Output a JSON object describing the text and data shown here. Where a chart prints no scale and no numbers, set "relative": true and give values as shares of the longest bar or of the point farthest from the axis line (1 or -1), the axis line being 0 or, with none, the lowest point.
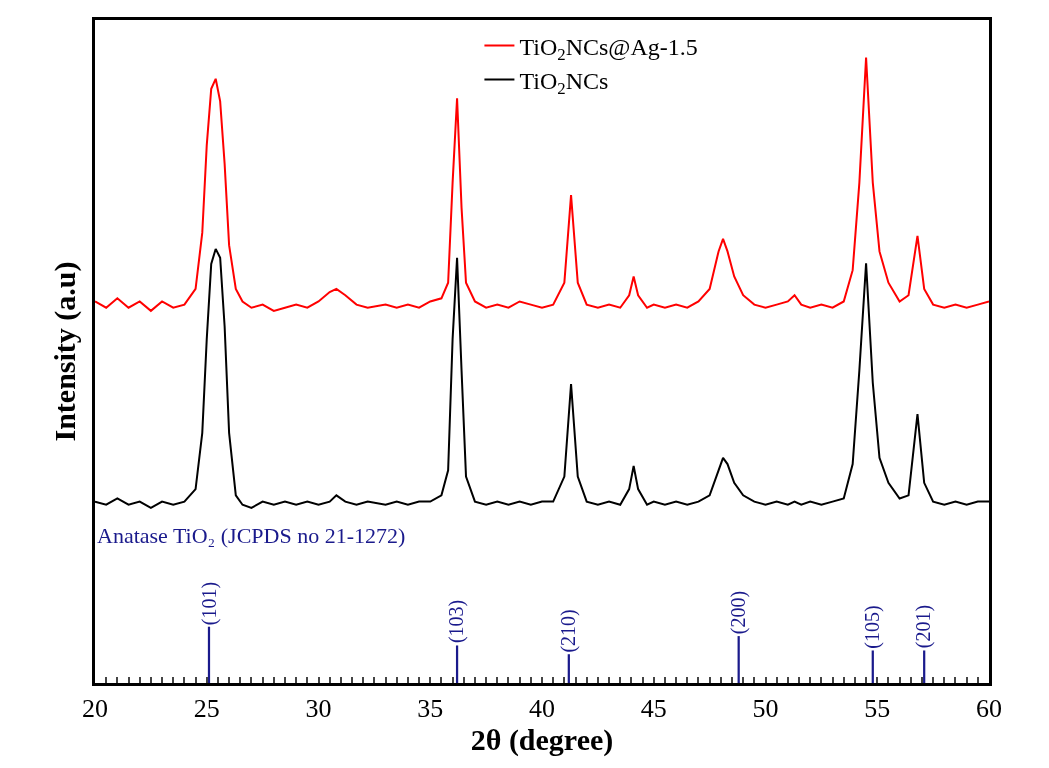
{
  "chart_data": {
    "type": "line",
    "relative": true,
    "xlabel": "2θ (degree)",
    "ylabel": "Intensity (a.u)",
    "annotations": [
      "Anatase TiO₂ (JCPDS no 21-1272)",
      {
        "text": "(101)",
        "x": 25.1,
        "y": 0.09
      },
      {
        "text": "(103)",
        "x": 36.2,
        "y": 0.06
      },
      {
        "text": "(210)",
        "x": 41.2,
        "y": 0.046
      },
      {
        "text": "(200)",
        "x": 48.8,
        "y": 0.075
      },
      {
        "text": "(105)",
        "x": 54.8,
        "y": 0.052
      },
      {
        "text": "(201)",
        "x": 57.1,
        "y": 0.052
      }
    ],
    "legend": "top",
    "marker": "none",
    "line_style": "solid",
    "tick_labels": "x",
    "xlim": [
      20,
      60
    ],
    "xticks": [
      20,
      {
        "value": 20.5,
        "label": null
      },
      {
        "value": 21,
        "label": null
      },
      {
        "value": 21.5,
        "label": null
      },
      {
        "value": 22,
        "label": null
      },
      {
        "value": 22.5,
        "label": null
      },
      {
        "value": 23,
        "label": null
      },
      {
        "value": 23.5,
        "label": null
      },
      {
        "value": 24,
        "label": null
      },
      {
        "value": 24.5,
        "label": null
      },
      25,
      {
        "value": 25.5,
        "label": null
      },
      {
        "value": 26,
        "label": null
      },
      {
        "value": 26.5,
        "label": null
      },
      {
        "value": 27,
        "label": null
      },
      {
        "value": 27.5,
        "label": null
      },
      {
        "value": 28,
        "label": null
      },
      {
        "value": 28.5,
        "label": null
      },
      {
        "value": 29,
        "label": null
      },
      {
        "value": 29.5,
        "label": null
      },
      30,
      {
        "value": 30.5,
        "label": null
      },
      {
        "value": 31,
        "label": null
      },
      {
        "value": 31.5,
        "label": null
      },
      {
        "value": 32,
        "label": null
      },
      {
        "value": 32.5,
        "label": null
      },
      {
        "value": 33,
        "label": null
      },
      {
        "value": 33.5,
        "label": null
      },
      {
        "value": 34,
        "label": null
      },
      {
        "value": 34.5,
        "label": null
      },
      35,
      {
        "value": 35.5,
        "label": null
      },
      {
        "value": 36,
        "label": null
      },
      {
        "value": 36.5,
        "label": null
      },
      {
        "value": 37,
        "label": null
      },
      {
        "value": 37.5,
        "label": null
      },
      {
        "value": 38,
        "label": null
      },
      {
        "value": 38.5,
        "label": null
      },
      {
        "value": 39,
        "label": null
      },
      {
        "value": 39.5,
        "label": null
      },
      40,
      {
        "value": 40.5,
        "label": null
      },
      {
        "value": 41,
        "label": null
      },
      {
        "value": 41.5,
        "label": null
      },
      {
        "value": 42,
        "label": null
      },
      {
        "value": 42.5,
        "label": null
      },
      {
        "value": 43,
        "label": null
      },
      {
        "value": 43.5,
        "label": null
      },
      {
        "value": 44,
        "label": null
      },
      {
        "value": 44.5,
        "label": null
      },
      45,
      {
        "value": 45.5,
        "label": null
      },
      {
        "value": 46,
        "label": null
      },
      {
        "value": 46.5,
        "label": null
      },
      {
        "value": 47,
        "label": null
      },
      {
        "value": 47.5,
        "label": null
      },
      {
        "value": 48,
        "label": null
      },
      {
        "value": 48.5,
        "label": null
      },
      {
        "value": 49,
        "label": null
      },
      {
        "value": 49.5,
        "label": null
      },
      50,
      {
        "value": 50.5,
        "label": null
      },
      {
        "value": 51,
        "label": null
      },
      {
        "value": 51.5,
        "label": null
      },
      {
        "value": 52,
        "label": null
      },
      {
        "value": 52.5,
        "label": null
      },
      {
        "value": 53,
        "label": null
      },
      {
        "value": 53.5,
        "label": null
      },
      {
        "value": 54,
        "label": null
      },
      {
        "value": 54.5,
        "label": null
      },
      55,
      {
        "value": 55.5,
        "label": null
      },
      {
        "value": 56,
        "label": null
      },
      {
        "value": 56.5,
        "label": null
      },
      {
        "value": 57,
        "label": null
      },
      {
        "value": 57.5,
        "label": null
      },
      {
        "value": 58,
        "label": null
      },
      {
        "value": 58.5,
        "label": null
      },
      {
        "value": 59,
        "label": null
      },
      {
        "value": 59.5,
        "label": null
      },
      60
    ],
    "x": [
      20,
      20.5,
      21,
      21.5,
      22,
      22.5,
      23,
      23.5,
      24,
      24.5,
      24.8,
      25.0,
      25.2,
      25.4,
      25.6,
      25.8,
      26.0,
      26.3,
      26.6,
      27,
      27.5,
      28,
      28.5,
      29,
      29.5,
      30,
      30.5,
      30.8,
      31.2,
      31.7,
      32.2,
      33,
      33.5,
      34,
      34.5,
      35,
      35.5,
      35.8,
      36.0,
      36.2,
      36.4,
      36.6,
      37,
      37.5,
      38,
      38.5,
      39,
      39.5,
      40,
      40.5,
      41.0,
      41.3,
      41.6,
      42,
      42.5,
      43,
      43.5,
      43.9,
      44.1,
      44.3,
      44.7,
      45,
      45.5,
      46,
      46.5,
      47,
      47.5,
      47.9,
      48.1,
      48.3,
      48.6,
      49,
      49.5,
      50,
      50.5,
      51,
      51.3,
      51.6,
      52,
      52.5,
      53,
      53.5,
      53.9,
      54.2,
      54.5,
      54.8,
      55.1,
      55.5,
      56,
      56.4,
      56.8,
      57.1,
      57.5,
      58,
      58.5,
      59,
      59.5,
      60
    ],
    "series": [
      {
        "name": "TiO$_{2}$NCs@Ag-1.5",
        "color": "#ff0000",
        "values": [
          0.61,
          0.6,
          0.615,
          0.6,
          0.61,
          0.595,
          0.61,
          0.6,
          0.605,
          0.63,
          0.72,
          0.86,
          0.95,
          0.966,
          0.93,
          0.83,
          0.7,
          0.63,
          0.61,
          0.6,
          0.605,
          0.595,
          0.6,
          0.605,
          0.6,
          0.61,
          0.625,
          0.63,
          0.62,
          0.605,
          0.6,
          0.605,
          0.6,
          0.605,
          0.6,
          0.61,
          0.615,
          0.64,
          0.8,
          0.935,
          0.76,
          0.64,
          0.61,
          0.6,
          0.605,
          0.6,
          0.61,
          0.605,
          0.6,
          0.605,
          0.64,
          0.78,
          0.64,
          0.605,
          0.6,
          0.605,
          0.6,
          0.62,
          0.65,
          0.62,
          0.6,
          0.605,
          0.6,
          0.605,
          0.6,
          0.61,
          0.63,
          0.69,
          0.71,
          0.69,
          0.65,
          0.62,
          0.605,
          0.6,
          0.605,
          0.61,
          0.62,
          0.605,
          0.6,
          0.605,
          0.6,
          0.61,
          0.66,
          0.8,
          1.0,
          0.8,
          0.69,
          0.64,
          0.61,
          0.62,
          0.715,
          0.63,
          0.605,
          0.6,
          0.605,
          0.6,
          0.605,
          0.61
        ]
      },
      {
        "name": "TiO$_{2}$NCs",
        "color": "#000000",
        "values": [
          0.29,
          0.285,
          0.295,
          0.285,
          0.29,
          0.28,
          0.29,
          0.285,
          0.29,
          0.31,
          0.4,
          0.55,
          0.67,
          0.694,
          0.68,
          0.57,
          0.4,
          0.3,
          0.285,
          0.28,
          0.29,
          0.285,
          0.29,
          0.285,
          0.29,
          0.285,
          0.29,
          0.3,
          0.29,
          0.285,
          0.29,
          0.285,
          0.29,
          0.285,
          0.29,
          0.29,
          0.3,
          0.34,
          0.55,
          0.68,
          0.5,
          0.33,
          0.29,
          0.285,
          0.29,
          0.285,
          0.29,
          0.285,
          0.29,
          0.29,
          0.33,
          0.478,
          0.33,
          0.29,
          0.285,
          0.29,
          0.285,
          0.31,
          0.347,
          0.31,
          0.285,
          0.29,
          0.285,
          0.29,
          0.285,
          0.29,
          0.3,
          0.34,
          0.36,
          0.35,
          0.32,
          0.3,
          0.29,
          0.285,
          0.29,
          0.285,
          0.29,
          0.285,
          0.29,
          0.285,
          0.29,
          0.295,
          0.35,
          0.5,
          0.671,
          0.48,
          0.36,
          0.32,
          0.295,
          0.3,
          0.43,
          0.32,
          0.29,
          0.285,
          0.29,
          0.285,
          0.29,
          0.29
        ]
      },
      {
        "type": "bar",
        "color": "#1a1a8c",
        "x": [
          25.1,
          36.2,
          41.2,
          48.8,
          54.8,
          57.1
        ],
        "values": [
          0.09,
          0.06,
          0.046,
          0.075,
          0.052,
          0.052
        ]
      }
    ]
  }
}
